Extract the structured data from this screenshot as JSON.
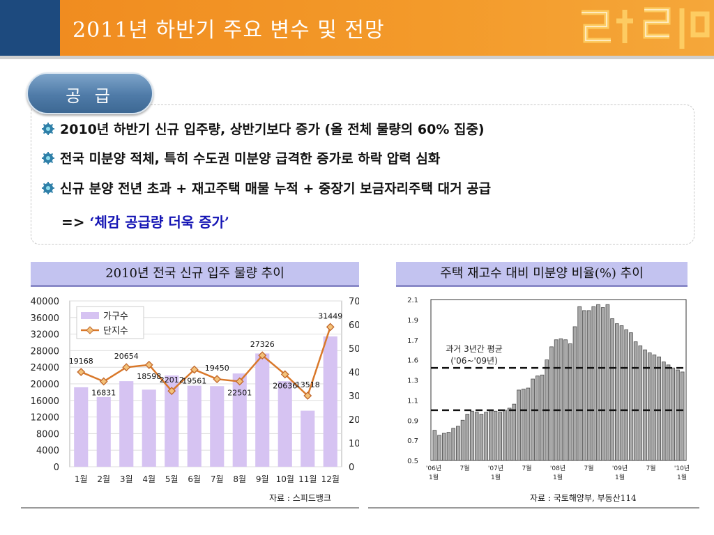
{
  "header": {
    "title": "2011년 하반기 주요 변수 및 전망"
  },
  "colors": {
    "header_orange": "#f08a1e",
    "header_navy": "#1d4a7e",
    "tab_blue": "#4f7ba8",
    "panel_title_bg": "#c3c3f0",
    "bar_purple": "#d6c3f2",
    "line_orange": "#d9782a",
    "conclusion_blue": "#1414b4"
  },
  "supply": {
    "tab_label": "공 급",
    "bullet_icon": "gear-bullet-icon",
    "bullets": [
      "2010년 하반기 신규 입주량, 상반기보다 증가 (올 전체 물량의 60% 집중)",
      "전국 미분양 적체, 특히 수도권 미분양 급격한 증가로 하락 압력 심화",
      "신규 분양 전년 초과 + 재고주택 매물 누적 + 중장기 보금자리주택 대거 공급"
    ],
    "conclusion_prefix": "=>",
    "conclusion_quote": "‘체감 공급량 더욱 증가’"
  },
  "left_panel": {
    "title": "2010년 전국 신규 입주 물량 추이",
    "source": "자료 : 스피드뱅크"
  },
  "right_panel": {
    "title": "주택 재고수 대비 미분양 비율(%) 추이",
    "source": "자료 : 국토해양부, 부동산114"
  },
  "chart_data": [
    {
      "type": "bar",
      "title": "2010년 전국 신규 입주 물량 추이",
      "categories": [
        "1월",
        "2월",
        "3월",
        "4월",
        "5월",
        "6월",
        "7월",
        "8월",
        "9월",
        "10월",
        "11월",
        "12월"
      ],
      "series": [
        {
          "name": "가구수",
          "type": "bar",
          "axis": "left",
          "values": [
            19168,
            16831,
            20654,
            18598,
            22012,
            19561,
            19450,
            22501,
            27326,
            20636,
            13518,
            31449
          ]
        },
        {
          "name": "단지수",
          "type": "line",
          "axis": "right",
          "values": [
            40,
            36,
            42,
            43,
            32,
            41,
            37,
            36,
            47,
            39,
            30,
            59
          ]
        }
      ],
      "data_labels": [
        "19168",
        "16831",
        "20654",
        "18598",
        "22012",
        "19561",
        "19450",
        "22501",
        "27326",
        "20636",
        "13518",
        "31449"
      ],
      "y_left_ticks": [
        "40000",
        "36000",
        "32000",
        "28000",
        "24000",
        "20000",
        "16000",
        "12000",
        "8000",
        "4000",
        "0"
      ],
      "y_right_ticks": [
        "70",
        "60",
        "50",
        "40",
        "30",
        "20",
        "10",
        "0"
      ],
      "ylim_left": [
        0,
        40000
      ],
      "ylim_right": [
        0,
        70
      ],
      "legend": "top-left",
      "grid": true
    },
    {
      "type": "bar",
      "title": "주택 재고수 대비 미분양 비율(%) 추이",
      "values": [
        0.8,
        0.75,
        0.77,
        0.78,
        0.82,
        0.84,
        0.9,
        0.96,
        0.99,
        0.98,
        0.96,
        0.98,
        1.0,
        0.99,
        0.98,
        1.0,
        1.02,
        1.06,
        1.2,
        1.21,
        1.22,
        1.31,
        1.34,
        1.35,
        1.5,
        1.63,
        1.7,
        1.71,
        1.7,
        1.66,
        1.83,
        2.03,
        1.99,
        1.99,
        2.03,
        2.05,
        2.02,
        2.05,
        1.91,
        1.86,
        1.84,
        1.8,
        1.77,
        1.68,
        1.64,
        1.6,
        1.57,
        1.55,
        1.53,
        1.48,
        1.45,
        1.42,
        1.4,
        1.38
      ],
      "x_tick_labels": [
        [
          "'06년",
          "1월"
        ],
        [
          "7월",
          ""
        ],
        [
          "'07년",
          "1월"
        ],
        [
          "7월",
          ""
        ],
        [
          "'08년",
          "1월"
        ],
        [
          "7월",
          ""
        ],
        [
          "'09년",
          "1월"
        ],
        [
          "7월",
          ""
        ],
        [
          "'10년",
          "1월"
        ]
      ],
      "y_ticks": [
        "2.1",
        "1.9",
        "1.7",
        "1.6",
        "1.3",
        "1.1",
        "0.9",
        "0.7",
        "0.5"
      ],
      "ylim": [
        0.5,
        2.1
      ],
      "annotation": [
        "과거 3년간 평균",
        "('06~'09년)"
      ],
      "reference_lines": [
        1.42,
        1.0
      ],
      "grid": false
    }
  ]
}
